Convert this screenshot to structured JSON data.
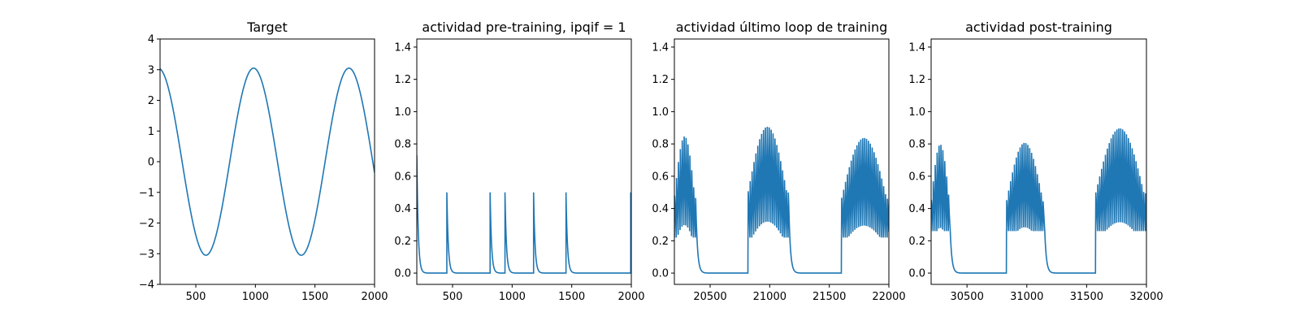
{
  "chart_data": [
    {
      "type": "line",
      "title": "Target",
      "xlabel": "",
      "ylabel": "",
      "xlim": [
        200,
        2000
      ],
      "ylim": [
        -4,
        4
      ],
      "xticks": [
        500,
        1000,
        1500,
        2000
      ],
      "yticks": [
        -4,
        -3,
        -2,
        -1,
        0,
        1,
        2,
        3,
        4
      ],
      "grid": false,
      "color": "#1f77b4",
      "signal": {
        "kind": "sine",
        "amplitude": 3.05,
        "period": 800,
        "peak_at": 985
      }
    },
    {
      "type": "line",
      "title": "actividad pre-training, ipqif = 1",
      "xlabel": "",
      "ylabel": "",
      "xlim": [
        200,
        2000
      ],
      "ylim": [
        -0.07,
        1.45
      ],
      "xticks": [
        500,
        1000,
        1500,
        2000
      ],
      "yticks": [
        0.0,
        0.2,
        0.4,
        0.6,
        0.8,
        1.0,
        1.2,
        1.4
      ],
      "grid": false,
      "color": "#1f77b4",
      "signal": {
        "kind": "spikes",
        "start_value": 0.73,
        "decay": 12,
        "spike_times": [
          452,
          815,
          940,
          1180,
          1452,
          1995
        ],
        "spike_heights": [
          0.5,
          0.5,
          0.5,
          0.5,
          0.5,
          0.5
        ]
      }
    },
    {
      "type": "line",
      "title": "actividad último loop de training",
      "xlabel": "",
      "ylabel": "",
      "xlim": [
        20200,
        22000
      ],
      "ylim": [
        -0.07,
        1.45
      ],
      "xticks": [
        20500,
        21000,
        21500,
        22000
      ],
      "yticks": [
        0.0,
        0.2,
        0.4,
        0.6,
        0.8,
        1.0,
        1.2,
        1.4
      ],
      "grid": false,
      "color": "#1f77b4",
      "signal": {
        "kind": "bursts",
        "start_value": 0.95,
        "decay": 14,
        "bursts": [
          {
            "start": 20200,
            "end": 20380,
            "peak": 0.85
          },
          {
            "start": 20818,
            "end": 21160,
            "peak": 0.91
          },
          {
            "start": 21602,
            "end": 22000,
            "peak": 0.84
          }
        ],
        "oscillation_period": 16,
        "trough_min": 0.22
      }
    },
    {
      "type": "line",
      "title": "actividad post-training",
      "xlabel": "",
      "ylabel": "",
      "xlim": [
        30200,
        32000
      ],
      "ylim": [
        -0.07,
        1.45
      ],
      "xticks": [
        30500,
        31000,
        31500,
        32000
      ],
      "yticks": [
        0.0,
        0.2,
        0.4,
        0.6,
        0.8,
        1.0,
        1.2,
        1.4
      ],
      "grid": false,
      "color": "#1f77b4",
      "signal": {
        "kind": "bursts",
        "start_value": 0.92,
        "decay": 14,
        "bursts": [
          {
            "start": 30200,
            "end": 30360,
            "peak": 0.8
          },
          {
            "start": 30830,
            "end": 31150,
            "peak": 0.81
          },
          {
            "start": 31575,
            "end": 32000,
            "peak": 0.9
          }
        ],
        "oscillation_period": 16,
        "trough_min": 0.26
      }
    }
  ]
}
